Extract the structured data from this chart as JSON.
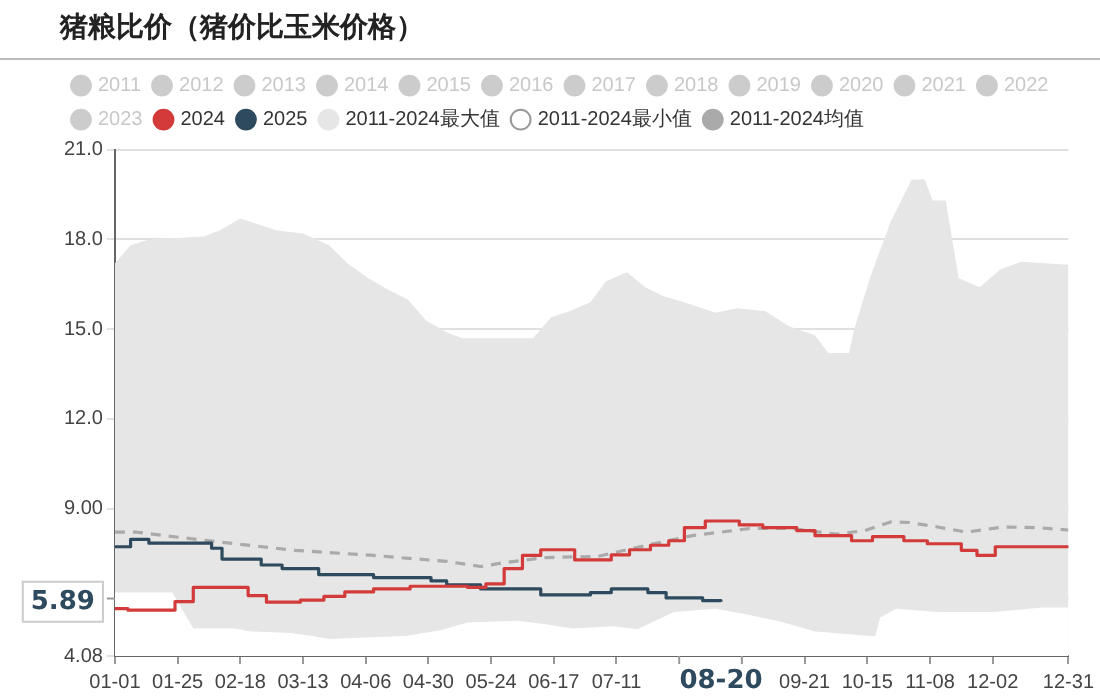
{
  "chart_data": {
    "type": "line",
    "title": "猪粮比价（猪价比玉米价格）",
    "xlim": [
      "--01-01",
      "--12-31"
    ],
    "xticks": [
      {
        "value": "--01-01",
        "label": "01-01"
      },
      {
        "value": "--01-25",
        "label": "01-25"
      },
      {
        "value": "--02-18",
        "label": "02-18"
      },
      {
        "value": "--03-13",
        "label": "03-13"
      },
      {
        "value": "--04-06",
        "label": "04-06"
      },
      {
        "value": "--04-30",
        "label": "04-30"
      },
      {
        "value": "--05-24",
        "label": "05-24"
      },
      {
        "value": "--06-17",
        "label": "06-17"
      },
      {
        "value": "--07-11",
        "label": "07-11"
      },
      {
        "value": "--08-04",
        "label": null
      },
      {
        "value": "--08-28",
        "label": null
      },
      {
        "value": "--09-21",
        "label": "09-21"
      },
      {
        "value": "--10-15",
        "label": "10-15"
      },
      {
        "value": "--11-08",
        "label": "11-08"
      },
      {
        "value": "--12-02",
        "label": "12-02"
      },
      {
        "value": "--12-31",
        "label": "12-31"
      }
    ],
    "ylim": [
      4.08,
      21
    ],
    "yticks": [
      4.08,
      {
        "value": 6,
        "label": null
      },
      {
        "value": 9,
        "label": "9.00"
      },
      {
        "value": 12,
        "label": "12.0"
      },
      {
        "value": 15,
        "label": "15.0"
      },
      {
        "value": 18,
        "label": "18.0"
      },
      {
        "value": 21,
        "label": "21.0"
      }
    ],
    "grid": "y",
    "legend": "top left",
    "marker": "none",
    "series": [
      {
        "name": "2011",
        "type": "line",
        "color": "#cccccc"
      },
      {
        "name": "2012",
        "type": "line",
        "color": "#cccccc"
      },
      {
        "name": "2013",
        "type": "line",
        "color": "#cccccc"
      },
      {
        "name": "2014",
        "type": "line",
        "color": "#cccccc"
      },
      {
        "name": "2015",
        "type": "line",
        "color": "#cccccc"
      },
      {
        "name": "2016",
        "type": "line",
        "color": "#cccccc"
      },
      {
        "name": "2017",
        "type": "line",
        "color": "#cccccc"
      },
      {
        "name": "2018",
        "type": "line",
        "color": "#cccccc"
      },
      {
        "name": "2019",
        "type": "line",
        "color": "#cccccc"
      },
      {
        "name": "2020",
        "type": "line",
        "color": "#cccccc"
      },
      {
        "name": "2021",
        "type": "line",
        "color": "#cccccc"
      },
      {
        "name": "2022",
        "type": "line",
        "color": "#cccccc"
      },
      {
        "name": "2023",
        "type": "line",
        "color": "#cccccc"
      },
      {
        "name": "2024",
        "type": "step",
        "color": "#d33a3a",
        "x": [
          "--01-01",
          "--01-06",
          "--01-24",
          "--01-31",
          "--02-21",
          "--02-28",
          "--03-12",
          "--03-21",
          "--03-29",
          "--04-09",
          "--04-23",
          "--05-15",
          "--05-22",
          "--05-29",
          "--06-05",
          "--06-12",
          "--06-25",
          "--07-09",
          "--07-16",
          "--07-24",
          "--07-31",
          "--08-06",
          "--08-14",
          "--08-27",
          "--09-05",
          "--09-18",
          "--09-25",
          "--10-09",
          "--10-17",
          "--10-29",
          "--11-07",
          "--11-20",
          "--11-26",
          "--12-03",
          "--12-25",
          "--12-31"
        ],
        "values": [
          5.66,
          5.61,
          5.9,
          6.37,
          6.1,
          5.88,
          5.95,
          6.07,
          6.22,
          6.32,
          6.41,
          6.37,
          6.49,
          7.0,
          7.44,
          7.63,
          7.29,
          7.46,
          7.63,
          7.78,
          7.93,
          8.37,
          8.59,
          8.46,
          8.37,
          8.27,
          8.1,
          7.93,
          8.07,
          7.93,
          7.83,
          7.61,
          7.44,
          7.73,
          7.73,
          7.78
        ]
      },
      {
        "name": "2025",
        "type": "step",
        "color": "#2e4a5e",
        "x": [
          "--01-01",
          "--01-07",
          "--01-14",
          "--02-07",
          "--02-11",
          "--02-26",
          "--03-05",
          "--03-19",
          "--04-09",
          "--05-01",
          "--05-07",
          "--05-20",
          "--06-12",
          "--07-01",
          "--07-09",
          "--07-23",
          "--07-30",
          "--08-13",
          "--08-20"
        ],
        "values": [
          7.73,
          7.98,
          7.85,
          7.68,
          7.32,
          7.12,
          7.0,
          6.8,
          6.7,
          6.59,
          6.46,
          6.32,
          6.12,
          6.2,
          6.32,
          6.2,
          6.02,
          5.93,
          5.89
        ]
      },
      {
        "name": "2011-2024最大值",
        "type": "area",
        "color": "#e6e6e6",
        "x": [
          "--01-01",
          "--01-07",
          "--01-14",
          "--02-04",
          "--02-10",
          "--02-18",
          "--02-25",
          "--03-03",
          "--03-13",
          "--03-23",
          "--03-30",
          "--04-07",
          "--04-15",
          "--04-22",
          "--04-29",
          "--05-07",
          "--05-13",
          "--06-09",
          "--06-16",
          "--06-23",
          "--07-01",
          "--07-07",
          "--07-15",
          "--07-22",
          "--07-29",
          "--08-06",
          "--08-18",
          "--08-26",
          "--09-06",
          "--09-15",
          "--09-25",
          "--09-30",
          "--10-08",
          "--10-10",
          "--10-16",
          "--10-24",
          "--11-01",
          "--11-06",
          "--11-09",
          "--11-14",
          "--11-19",
          "--11-27",
          "--12-05",
          "--12-13",
          "--12-31"
        ],
        "values": [
          17.2,
          17.8,
          18.0,
          18.1,
          18.3,
          18.7,
          18.5,
          18.3,
          18.2,
          17.8,
          17.2,
          16.7,
          16.3,
          16.0,
          15.3,
          14.9,
          14.7,
          14.7,
          15.4,
          15.6,
          15.9,
          16.6,
          16.9,
          16.4,
          16.1,
          15.9,
          15.55,
          15.7,
          15.6,
          15.1,
          14.8,
          14.2,
          14.2,
          15.0,
          16.7,
          18.6,
          20.0,
          20.0,
          19.3,
          19.3,
          16.7,
          16.4,
          17.0,
          17.25,
          17.15
        ]
      },
      {
        "name": "2011-2024最小值",
        "type": "area",
        "color": "#ffffff",
        "x": [
          "--01-01",
          "--01-23",
          "--01-31",
          "--02-16",
          "--02-22",
          "--03-08",
          "--03-16",
          "--03-23",
          "--04-06",
          "--04-22",
          "--05-05",
          "--05-15",
          "--06-03",
          "--06-14",
          "--06-24",
          "--07-10",
          "--07-19",
          "--08-02",
          "--08-18",
          "--08-29",
          "--09-11",
          "--09-25",
          "--10-18",
          "--10-20",
          "--10-26",
          "--11-11",
          "--12-02",
          "--12-21",
          "--12-31"
        ],
        "values": [
          6.2,
          6.2,
          5.0,
          5.0,
          4.9,
          4.85,
          4.76,
          4.65,
          4.7,
          4.76,
          4.95,
          5.2,
          5.26,
          5.14,
          5.0,
          5.07,
          4.97,
          5.55,
          5.66,
          5.48,
          5.25,
          4.9,
          4.74,
          5.37,
          5.66,
          5.55,
          5.55,
          5.7,
          5.7
        ]
      },
      {
        "name": "2011-2024均值",
        "type": "line",
        "line_style": "dashed",
        "color": "#aaaaaa",
        "x": [
          "--01-01",
          "--01-09",
          "--01-28",
          "--02-14",
          "--03-10",
          "--04-09",
          "--05-07",
          "--05-20",
          "--05-29",
          "--06-14",
          "--07-04",
          "--07-20",
          "--08-09",
          "--08-31",
          "--09-16",
          "--10-03",
          "--10-14",
          "--10-24",
          "--10-31",
          "--11-11",
          "--11-22",
          "--12-06",
          "--12-19",
          "--12-31"
        ],
        "values": [
          8.22,
          8.22,
          8.02,
          7.85,
          7.61,
          7.44,
          7.24,
          7.07,
          7.2,
          7.37,
          7.41,
          7.73,
          8.1,
          8.34,
          8.34,
          8.15,
          8.27,
          8.56,
          8.54,
          8.39,
          8.22,
          8.39,
          8.37,
          8.29
        ]
      }
    ],
    "annotations": [
      "08-20",
      "5.89"
    ]
  }
}
